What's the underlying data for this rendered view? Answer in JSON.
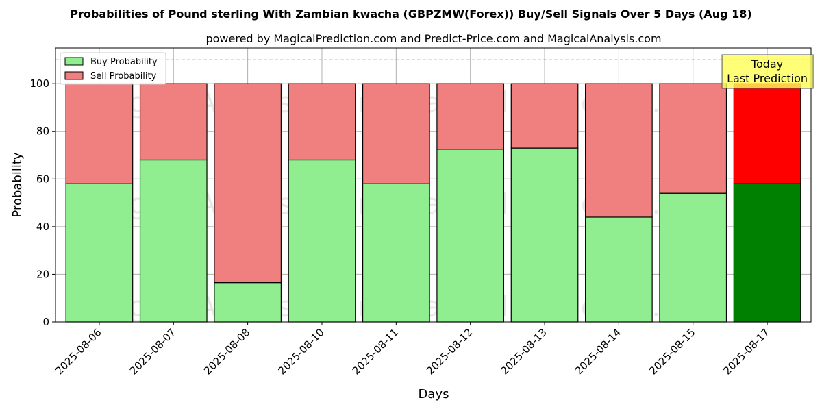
{
  "chart_data": {
    "type": "bar",
    "stacked": true,
    "title": "Probabilities of Pound sterling With Zambian kwacha (GBPZMW(Forex)) Buy/Sell Signals Over 5 Days (Aug 18)",
    "subtitle": "powered by MagicalPrediction.com and Predict-Price.com and MagicalAnalysis.com",
    "xlabel": "Days",
    "ylabel": "Probability",
    "ylim": [
      0,
      115
    ],
    "yticks": [
      0,
      20,
      40,
      60,
      80,
      100
    ],
    "grid": true,
    "legend_position": "top-left",
    "reference_line": 110,
    "categories": [
      "2025-08-06",
      "2025-08-07",
      "2025-08-08",
      "2025-08-10",
      "2025-08-11",
      "2025-08-12",
      "2025-08-13",
      "2025-08-14",
      "2025-08-15",
      "2025-08-17"
    ],
    "series": [
      {
        "name": "Buy Probability",
        "color": "#90ee90",
        "values": [
          58,
          68,
          16.5,
          68,
          58,
          72.5,
          73,
          44,
          54,
          58
        ]
      },
      {
        "name": "Sell Probability",
        "color": "#f08080",
        "values": [
          42,
          32,
          83.5,
          32,
          42,
          27.5,
          27,
          56,
          46,
          42
        ]
      }
    ],
    "highlight": {
      "index": 9,
      "buy_color": "#008000",
      "sell_color": "#ff0000"
    },
    "annotation": {
      "lines": [
        "Today",
        "Last Prediction"
      ],
      "background": "#ffff55"
    },
    "watermarks": [
      "MagicalAnalysis.com",
      "MagicalPrediction.com"
    ]
  }
}
